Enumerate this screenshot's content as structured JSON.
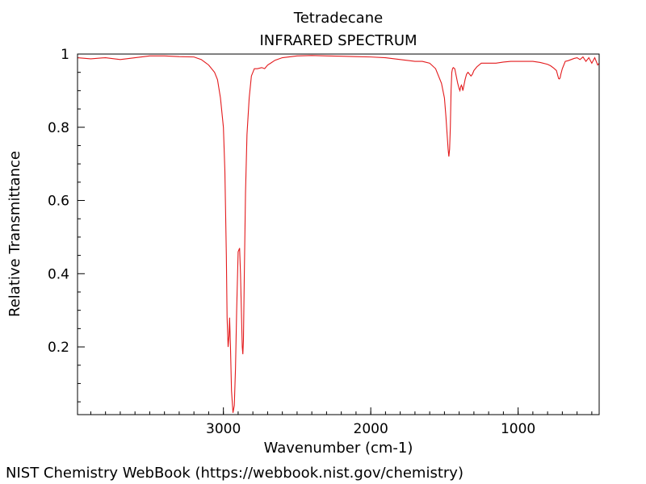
{
  "chart_data": {
    "type": "line",
    "title": "Tetradecane",
    "subtitle": "INFRARED SPECTRUM",
    "xlabel": "Wavenumber (cm-1)",
    "ylabel": "Relative Transmittance",
    "xlim": [
      3990,
      450
    ],
    "ylim": [
      0.015,
      1.0
    ],
    "xticks": [
      3000,
      2000,
      1000
    ],
    "yticks": [
      0.2,
      0.4,
      0.6,
      0.8,
      1
    ],
    "x_reversed": true,
    "grid": false,
    "legend": "none",
    "line_color": "#e31a1c",
    "series": [
      {
        "x": [
          3990,
          3900,
          3800,
          3700,
          3600,
          3500,
          3400,
          3300,
          3200,
          3150,
          3100,
          3060,
          3040,
          3020,
          3000,
          2990,
          2980,
          2975,
          2968,
          2962,
          2958,
          2952,
          2945,
          2935,
          2926,
          2918,
          2910,
          2900,
          2890,
          2884,
          2878,
          2872,
          2868,
          2864,
          2858,
          2850,
          2840,
          2825,
          2810,
          2790,
          2770,
          2740,
          2720,
          2700,
          2680,
          2650,
          2600,
          2500,
          2400,
          2300,
          2200,
          2100,
          2000,
          1900,
          1800,
          1700,
          1650,
          1600,
          1560,
          1520,
          1500,
          1490,
          1480,
          1475,
          1470,
          1465,
          1460,
          1455,
          1450,
          1445,
          1440,
          1430,
          1420,
          1410,
          1400,
          1395,
          1390,
          1385,
          1380,
          1375,
          1370,
          1360,
          1350,
          1340,
          1330,
          1320,
          1310,
          1300,
          1280,
          1250,
          1200,
          1150,
          1100,
          1050,
          1000,
          950,
          900,
          850,
          800,
          780,
          760,
          740,
          730,
          725,
          720,
          715,
          710,
          700,
          690,
          680,
          660,
          640,
          620,
          600,
          580,
          560,
          540,
          520,
          500,
          480,
          460,
          450
        ],
        "y": [
          0.99,
          0.987,
          0.99,
          0.985,
          0.99,
          0.995,
          0.995,
          0.993,
          0.992,
          0.985,
          0.97,
          0.95,
          0.93,
          0.88,
          0.8,
          0.68,
          0.45,
          0.28,
          0.2,
          0.23,
          0.28,
          0.2,
          0.08,
          0.02,
          0.04,
          0.14,
          0.3,
          0.46,
          0.47,
          0.4,
          0.3,
          0.2,
          0.18,
          0.22,
          0.4,
          0.62,
          0.78,
          0.88,
          0.94,
          0.96,
          0.96,
          0.963,
          0.96,
          0.97,
          0.975,
          0.983,
          0.99,
          0.995,
          0.996,
          0.995,
          0.994,
          0.993,
          0.992,
          0.99,
          0.985,
          0.98,
          0.98,
          0.975,
          0.96,
          0.92,
          0.88,
          0.83,
          0.77,
          0.74,
          0.72,
          0.74,
          0.8,
          0.9,
          0.95,
          0.96,
          0.963,
          0.96,
          0.94,
          0.92,
          0.905,
          0.9,
          0.91,
          0.915,
          0.91,
          0.9,
          0.91,
          0.93,
          0.945,
          0.95,
          0.945,
          0.94,
          0.945,
          0.955,
          0.965,
          0.975,
          0.975,
          0.975,
          0.978,
          0.98,
          0.98,
          0.98,
          0.98,
          0.977,
          0.972,
          0.968,
          0.962,
          0.955,
          0.94,
          0.933,
          0.932,
          0.935,
          0.945,
          0.96,
          0.97,
          0.98,
          0.982,
          0.985,
          0.988,
          0.99,
          0.985,
          0.992,
          0.98,
          0.99,
          0.975,
          0.99,
          0.97,
          0.975
        ]
      }
    ]
  },
  "footer": "NIST Chemistry WebBook (https://webbook.nist.gov/chemistry)"
}
